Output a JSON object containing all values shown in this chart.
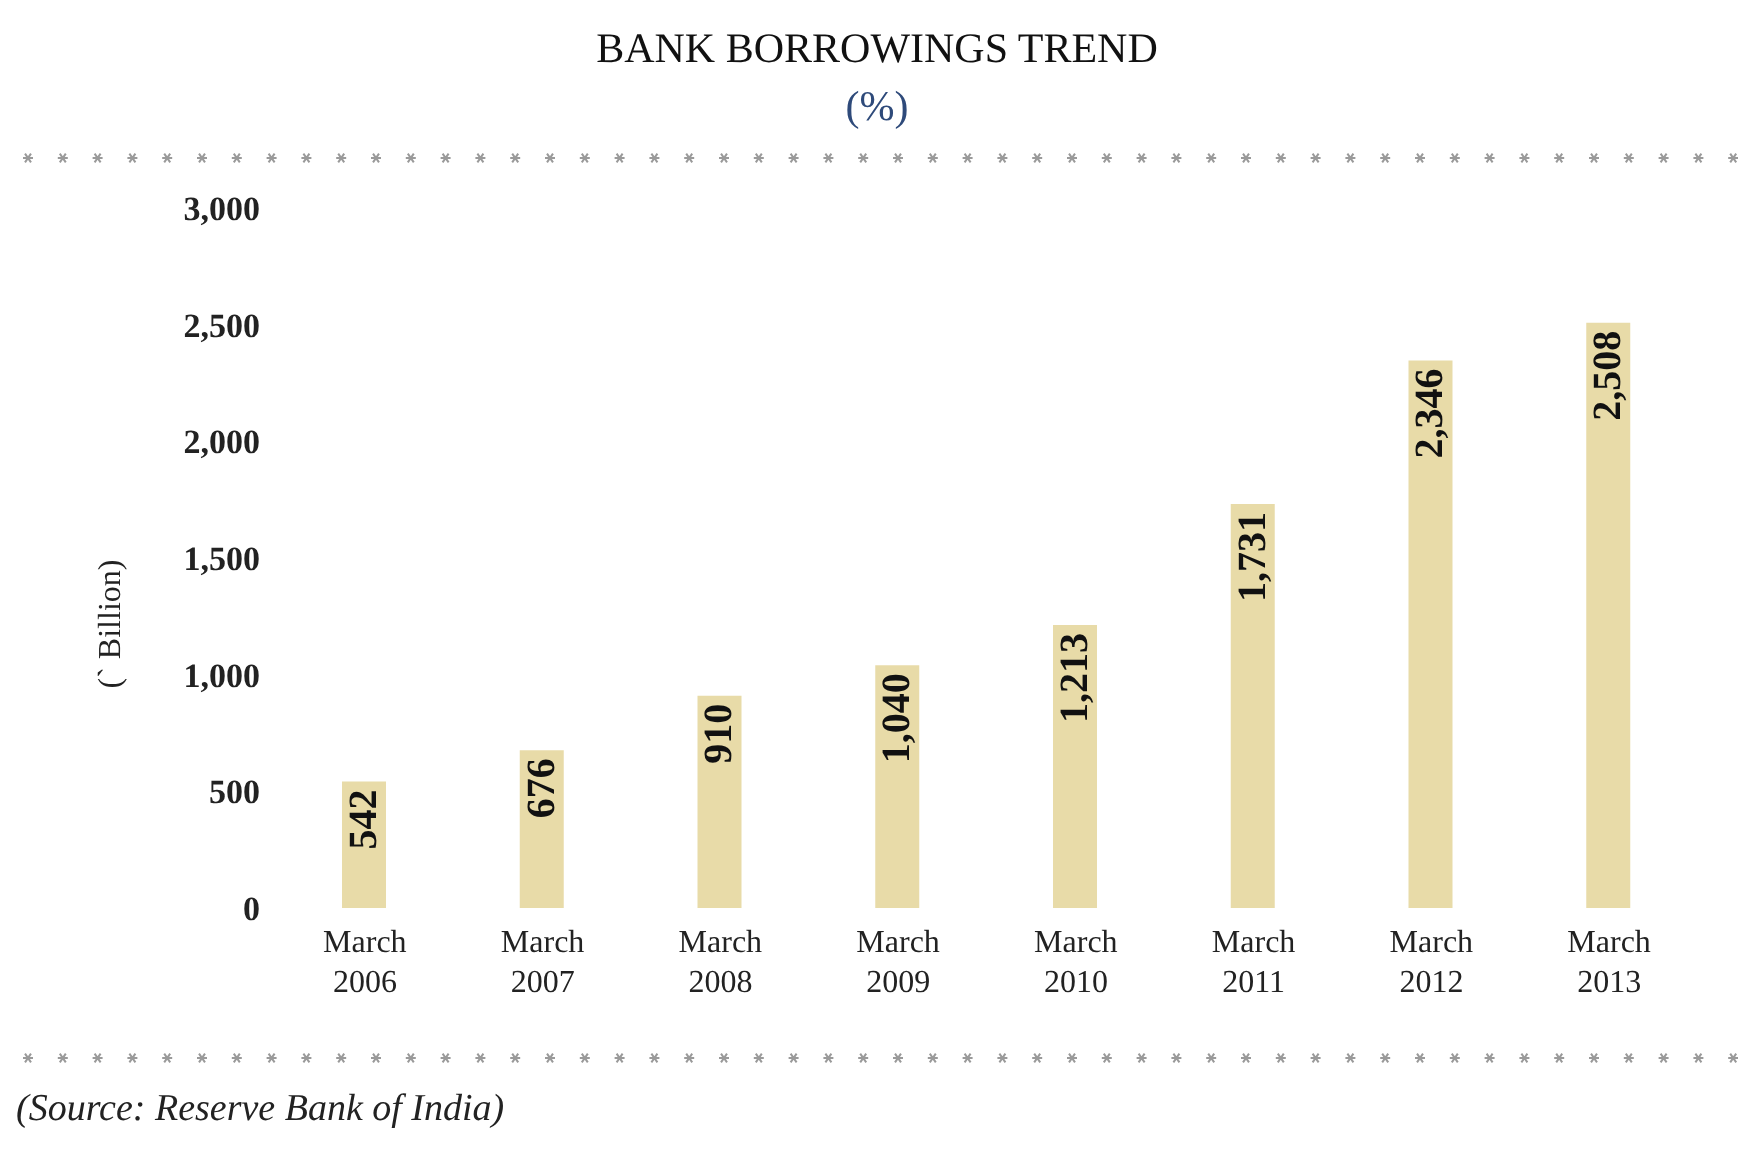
{
  "chart_data": {
    "type": "bar",
    "title": "BANK BORROWINGS TREND",
    "subtitle": "(%)",
    "ylabel": "(` Billion)",
    "categories": [
      "March 2006",
      "March 2007",
      "March 2008",
      "March 2009",
      "March 2010",
      "March 2011",
      "March 2012",
      "March 2013"
    ],
    "values": [
      542,
      676,
      910,
      1040,
      1213,
      1731,
      2346,
      2508
    ],
    "color": "#e8dba8",
    "ylim": [
      0,
      3000
    ],
    "yticks": [
      0,
      {
        "value": 500,
        "label": "500"
      },
      {
        "value": 1000,
        "label": "1,000"
      },
      {
        "value": 1500,
        "label": "1,500"
      },
      {
        "value": 2000,
        "label": "2,000"
      },
      {
        "value": 2500,
        "label": "2,500"
      },
      {
        "value": 3000,
        "label": "3,000"
      }
    ],
    "value_labels": [
      "542",
      "676",
      "910",
      "1,040",
      "1,213",
      "1,731",
      "2,346",
      "2,508"
    ],
    "grid": false,
    "legend": false,
    "annotations": [
      "(Source: Reserve Bank of India)"
    ]
  }
}
